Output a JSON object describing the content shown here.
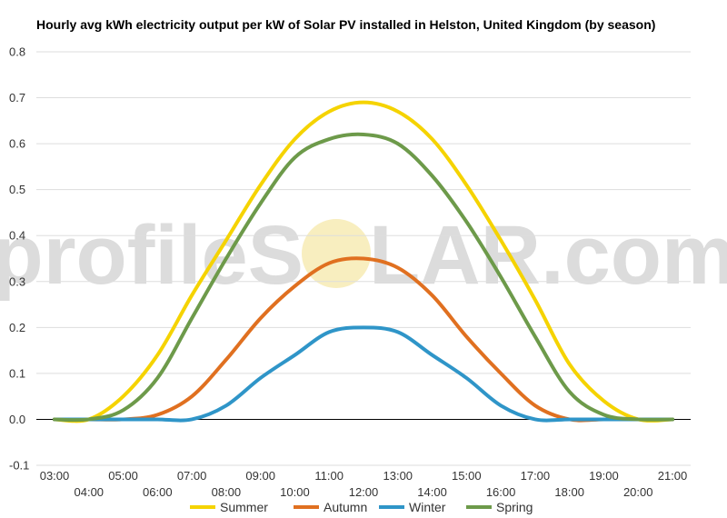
{
  "chart_data": {
    "type": "line",
    "title": "Hourly avg kWh electricity output per kW of Solar PV installed in Helston, United Kingdom (by season)",
    "xlabel": "",
    "ylabel": "",
    "ylim": [
      -0.1,
      0.8
    ],
    "yticks": [
      "-0.1",
      "0.0",
      "0.1",
      "0.2",
      "0.3",
      "0.4",
      "0.5",
      "0.6",
      "0.7",
      "0.8"
    ],
    "x": [
      "03:00",
      "04:00",
      "05:00",
      "06:00",
      "07:00",
      "08:00",
      "09:00",
      "10:00",
      "11:00",
      "12:00",
      "13:00",
      "14:00",
      "15:00",
      "16:00",
      "17:00",
      "18:00",
      "19:00",
      "20:00",
      "21:00"
    ],
    "grid": true,
    "legend": "bottom",
    "series": [
      {
        "name": "Summer",
        "color": "#f5d300",
        "values": [
          0.0,
          0.0,
          0.05,
          0.14,
          0.27,
          0.39,
          0.51,
          0.61,
          0.67,
          0.69,
          0.67,
          0.61,
          0.51,
          0.39,
          0.26,
          0.12,
          0.04,
          0.0,
          0.0
        ]
      },
      {
        "name": "Autumn",
        "color": "#e07020",
        "values": [
          0.0,
          0.0,
          0.0,
          0.01,
          0.05,
          0.13,
          0.22,
          0.29,
          0.34,
          0.35,
          0.33,
          0.27,
          0.18,
          0.1,
          0.03,
          0.0,
          0.0,
          0.0,
          0.0
        ]
      },
      {
        "name": "Winter",
        "color": "#2f95c8",
        "values": [
          0.0,
          0.0,
          0.0,
          0.0,
          0.0,
          0.03,
          0.09,
          0.14,
          0.19,
          0.2,
          0.19,
          0.14,
          0.09,
          0.03,
          0.0,
          0.0,
          0.0,
          0.0,
          0.0
        ]
      },
      {
        "name": "Spring",
        "color": "#6d9a4a",
        "values": [
          0.0,
          0.0,
          0.02,
          0.09,
          0.22,
          0.35,
          0.47,
          0.57,
          0.61,
          0.62,
          0.6,
          0.53,
          0.43,
          0.31,
          0.18,
          0.06,
          0.01,
          0.0,
          0.0
        ]
      }
    ]
  },
  "watermark": {
    "left": "profileS",
    "right": "LAR.com",
    "sun_color": "#f3e08a"
  }
}
